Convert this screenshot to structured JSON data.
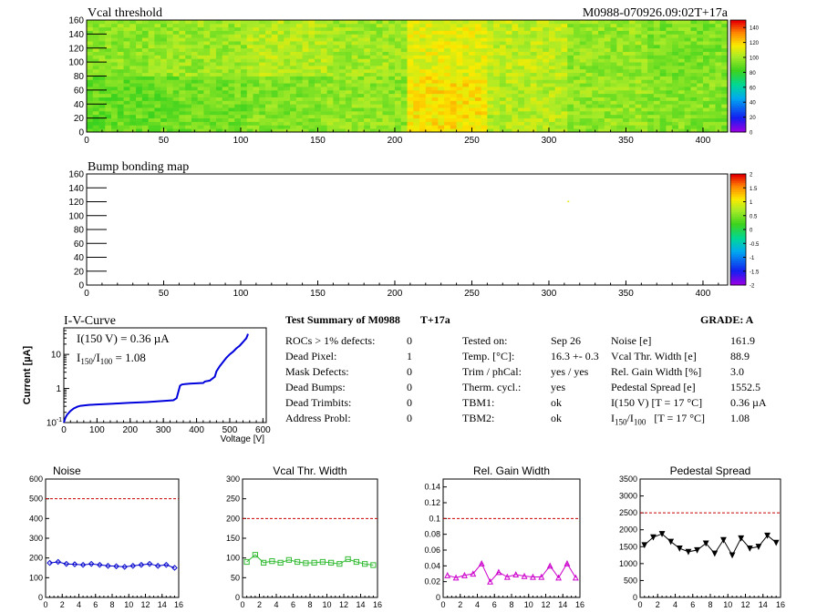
{
  "header": {
    "vcal_title": "Vcal threshold",
    "run_id": "M0988-070926.09:02T+17a",
    "bump_title": "Bump bonding map"
  },
  "maps": {
    "x_ticks": [
      "0",
      "50",
      "100",
      "150",
      "200",
      "250",
      "300",
      "350",
      "400"
    ],
    "y_ticks": [
      "0",
      "20",
      "40",
      "60",
      "80",
      "100",
      "120",
      "140",
      "160"
    ],
    "vcal_scale_ticks": [
      "0",
      "20",
      "40",
      "60",
      "80",
      "100",
      "120",
      "140"
    ],
    "bump_scale_ticks": [
      "-2",
      "-1.5",
      "-1",
      "-0.5",
      "0",
      "0.5",
      "1",
      "1.5",
      "2"
    ],
    "vcal_roc_means": [
      [
        97,
        99,
        104,
        100,
        112,
        106,
        98,
        94
      ],
      [
        90,
        92,
        95,
        97,
        118,
        104,
        98,
        95
      ]
    ]
  },
  "iv": {
    "title": "I-V-Curve",
    "line1": "I(150 V) = 0.36 µA",
    "line2_prefix": "I",
    "line2_sub1": "150",
    "line2_mid": "/I",
    "line2_sub2": "100",
    "line2_suffix": " =  1.08",
    "ylabel": "Current [µA]",
    "xlabel": "Voltage [V]",
    "x_ticks": [
      "0",
      "100",
      "200",
      "300",
      "400",
      "500",
      "600"
    ],
    "y_ticks": [
      "10",
      "1",
      "10"
    ],
    "y_tick_exp": "-1"
  },
  "summary": {
    "title": "Test Summary of M0988",
    "tag": "T+17a",
    "grade": "GRADE:  A",
    "col1": [
      {
        "label": "ROCs > 1% defects:",
        "value": "0"
      },
      {
        "label": "Dead Pixel:",
        "value": "1"
      },
      {
        "label": "Mask Defects:",
        "value": "0"
      },
      {
        "label": "Dead Bumps:",
        "value": "0"
      },
      {
        "label": "Dead Trimbits:",
        "value": "0"
      },
      {
        "label": "Address Probl:",
        "value": "0"
      }
    ],
    "col2": [
      {
        "label": "Tested on:",
        "value": "Sep 26"
      },
      {
        "label": "Temp. [°C]:",
        "value": "16.3 +- 0.3"
      },
      {
        "label": "Trim / phCal:",
        "value": "yes / yes"
      },
      {
        "label": "Therm. cycl.:",
        "value": "yes"
      },
      {
        "label": "TBM1:",
        "value": "ok"
      },
      {
        "label": "TBM2:",
        "value": "ok"
      }
    ],
    "col3": [
      {
        "label": "Noise [e]",
        "value": "161.9"
      },
      {
        "label": "Vcal Thr. Width [e]",
        "value": "88.9"
      },
      {
        "label": "Rel. Gain Width [%]",
        "value": "3.0"
      },
      {
        "label": "Pedestal Spread [e]",
        "value": "1552.5"
      },
      {
        "label": "I(150 V) [T = 17 °C]",
        "value": "0.36 µA"
      },
      {
        "label": "I",
        "sub1": "150",
        "mid": "/I",
        "sub2": "100",
        "suffix": "   [T = 17 °C]",
        "value": "1.08"
      }
    ]
  },
  "chart_data": [
    {
      "type": "heatmap",
      "title": "Vcal threshold",
      "xlim": [
        0,
        416
      ],
      "ylim": [
        0,
        160
      ],
      "zlim": [
        0,
        150
      ],
      "roc_means_rows_bottom_top": [
        [
          90,
          92,
          95,
          97,
          118,
          104,
          98,
          95
        ],
        [
          97,
          99,
          104,
          100,
          112,
          106,
          98,
          94
        ]
      ]
    },
    {
      "type": "heatmap",
      "title": "Bump bonding map",
      "xlim": [
        0,
        416
      ],
      "ylim": [
        0,
        160
      ],
      "zlim": [
        -2,
        2
      ],
      "hits": [
        {
          "x": 312,
          "y": 120,
          "value": 1
        }
      ]
    },
    {
      "type": "line",
      "title": "I-V-Curve",
      "xlabel": "Voltage [V]",
      "ylabel": "Current [µA]",
      "xlim": [
        0,
        610
      ],
      "ylim": [
        0.1,
        60
      ],
      "yscale": "log",
      "color": "#0000dd",
      "x": [
        0,
        5,
        10,
        20,
        30,
        40,
        50,
        75,
        100,
        150,
        200,
        250,
        300,
        330,
        340,
        345,
        350,
        355,
        365,
        380,
        400,
        420,
        425,
        440,
        455,
        460,
        470,
        480,
        490,
        500,
        510,
        520,
        530,
        540,
        550,
        555
      ],
      "y": [
        0.1,
        0.14,
        0.17,
        0.22,
        0.26,
        0.29,
        0.31,
        0.33,
        0.34,
        0.36,
        0.38,
        0.4,
        0.43,
        0.45,
        0.52,
        0.8,
        1.2,
        1.3,
        1.35,
        1.38,
        1.42,
        1.45,
        1.6,
        1.7,
        2.2,
        3.2,
        4.5,
        6.0,
        8.0,
        10,
        12,
        15,
        18,
        23,
        30,
        40
      ]
    },
    {
      "type": "line",
      "title": "Noise",
      "xlim": [
        0,
        16
      ],
      "ylim": [
        0,
        600
      ],
      "x_ticks": [
        0,
        2,
        4,
        6,
        8,
        10,
        12,
        14,
        16
      ],
      "y_ticks": [
        0,
        100,
        200,
        300,
        400,
        500,
        600
      ],
      "threshold": 500,
      "marker": "diamond",
      "color": "#0000cc",
      "x": [
        0,
        1,
        2,
        3,
        4,
        5,
        6,
        7,
        8,
        9,
        10,
        11,
        12,
        13,
        14,
        15
      ],
      "y": [
        175,
        180,
        170,
        168,
        165,
        170,
        165,
        160,
        158,
        155,
        160,
        165,
        170,
        160,
        165,
        150
      ]
    },
    {
      "type": "line",
      "title": "Vcal Thr. Width",
      "xlim": [
        0,
        16
      ],
      "ylim": [
        0,
        300
      ],
      "x_ticks": [
        0,
        2,
        4,
        6,
        8,
        10,
        12,
        14,
        16
      ],
      "y_ticks": [
        0,
        50,
        100,
        150,
        200,
        250,
        300
      ],
      "threshold": 200,
      "marker": "square",
      "color": "#33bb33",
      "x": [
        0,
        1,
        2,
        3,
        4,
        5,
        6,
        7,
        8,
        9,
        10,
        11,
        12,
        13,
        14,
        15
      ],
      "y": [
        90,
        108,
        88,
        92,
        88,
        95,
        90,
        87,
        88,
        90,
        88,
        85,
        97,
        90,
        85,
        82
      ]
    },
    {
      "type": "line",
      "title": "Rel. Gain Width",
      "xlim": [
        0,
        16
      ],
      "ylim": [
        0,
        0.15
      ],
      "x_ticks": [
        0,
        2,
        4,
        6,
        8,
        10,
        12,
        14,
        16
      ],
      "y_ticks": [
        0,
        0.02,
        0.04,
        0.06,
        0.08,
        0.1,
        0.12,
        0.14
      ],
      "threshold": 0.1,
      "marker": "triangle",
      "color": "#cc00cc",
      "x": [
        0,
        1,
        2,
        3,
        4,
        5,
        6,
        7,
        8,
        9,
        10,
        11,
        12,
        13,
        14,
        15
      ],
      "y": [
        0.028,
        0.025,
        0.028,
        0.03,
        0.043,
        0.02,
        0.032,
        0.026,
        0.029,
        0.027,
        0.026,
        0.026,
        0.04,
        0.025,
        0.043,
        0.025
      ]
    },
    {
      "type": "line",
      "title": "Pedestal Spread",
      "xlim": [
        0,
        16
      ],
      "ylim": [
        0,
        3500
      ],
      "x_ticks": [
        0,
        2,
        4,
        6,
        8,
        10,
        12,
        14,
        16
      ],
      "y_ticks": [
        0,
        500,
        1000,
        1500,
        2000,
        2500,
        3000,
        3500
      ],
      "threshold": 2500,
      "marker": "triangle-down",
      "color": "#000000",
      "x": [
        0,
        1,
        2,
        3,
        4,
        5,
        6,
        7,
        8,
        9,
        10,
        11,
        12,
        13,
        14,
        15
      ],
      "y": [
        1550,
        1780,
        1880,
        1650,
        1450,
        1350,
        1400,
        1600,
        1300,
        1700,
        1250,
        1750,
        1450,
        1500,
        1830,
        1620
      ]
    }
  ]
}
